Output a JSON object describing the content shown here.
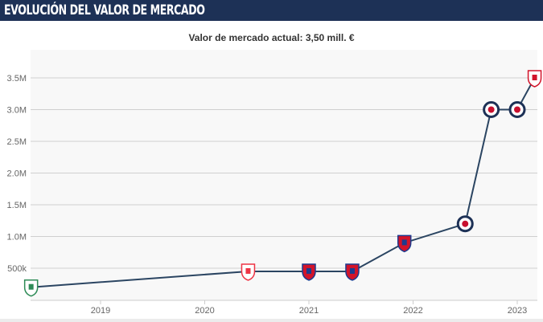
{
  "header": {
    "title": "EVOLUCIÓN DEL VALOR DE MERCADO"
  },
  "chart_data": {
    "type": "line",
    "title": "Valor de mercado actual: 3,50 mill. €",
    "xlabel": "",
    "ylabel": "",
    "x_ticks": [
      "2019",
      "2020",
      "2021",
      "2022",
      "2023"
    ],
    "y_ticks": [
      {
        "v": 500000,
        "label": "500k"
      },
      {
        "v": 1000000,
        "label": "1.0M"
      },
      {
        "v": 1500000,
        "label": "1.5M"
      },
      {
        "v": 2000000,
        "label": "2.0M"
      },
      {
        "v": 2500000,
        "label": "2.5M"
      },
      {
        "v": 3000000,
        "label": "3.0M"
      },
      {
        "v": 3500000,
        "label": "3.5M"
      }
    ],
    "ylim": [
      0,
      3600000
    ],
    "grid": true,
    "line_color": "#2b4562",
    "points": [
      {
        "date": "2018-05",
        "value": 200000,
        "club_badge": "green-white"
      },
      {
        "date": "2020-06",
        "value": 450000,
        "club_badge": "red-white"
      },
      {
        "date": "2021-01",
        "value": 450000,
        "club_badge": "red-blue"
      },
      {
        "date": "2021-06",
        "value": 450000,
        "club_badge": "red-blue"
      },
      {
        "date": "2021-12",
        "value": 900000,
        "club_badge": "red-blue"
      },
      {
        "date": "2022-07",
        "value": 1200000,
        "club_badge": "blue-circle"
      },
      {
        "date": "2022-10",
        "value": 3000000,
        "club_badge": "blue-circle"
      },
      {
        "date": "2023-01",
        "value": 3000000,
        "club_badge": "blue-circle"
      },
      {
        "date": "2023-03",
        "value": 3500000,
        "club_badge": "red-stripes"
      }
    ]
  }
}
